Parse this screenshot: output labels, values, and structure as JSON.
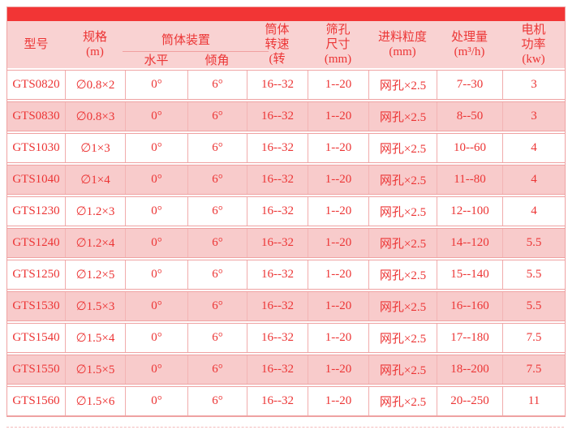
{
  "colors": {
    "top_bar_red": "#f23535",
    "header_background": "#f9d2d2",
    "row_pink": "#f8cbcb",
    "row_white": "#ffffff",
    "grid_line": "#efa2a2",
    "text_red": "#ec3535"
  },
  "table": {
    "headers": {
      "model": "型号",
      "spec": "规格\n(m)",
      "cylinder_group": "筒体装置",
      "horizontal": "水平",
      "incline": "倾角",
      "speed": "筒体\n转速\n(转",
      "hole_size": "筛孔\n尺寸\n(mm)",
      "feed_size": "进料粒度\n(mm)",
      "capacity": "处理量\n(m³/h)",
      "power": "电机\n功率\n(kw)"
    },
    "rows": [
      [
        "GTS0820",
        "∅0.8×2",
        "0°",
        "6°",
        "16--32",
        "1--20",
        "网孔×2.5",
        "7--30",
        "3"
      ],
      [
        "GTS0830",
        "∅0.8×3",
        "0°",
        "6°",
        "16--32",
        "1--20",
        "网孔×2.5",
        "8--50",
        "3"
      ],
      [
        "GTS1030",
        "∅1×3",
        "0°",
        "6°",
        "16--32",
        "1--20",
        "网孔×2.5",
        "10--60",
        "4"
      ],
      [
        "GTS1040",
        "∅1×4",
        "0°",
        "6°",
        "16--32",
        "1--20",
        "网孔×2.5",
        "11--80",
        "4"
      ],
      [
        "GTS1230",
        "∅1.2×3",
        "0°",
        "6°",
        "16--32",
        "1--20",
        "网孔×2.5",
        "12--100",
        "4"
      ],
      [
        "GTS1240",
        "∅1.2×4",
        "0°",
        "6°",
        "16--32",
        "1--20",
        "网孔×2.5",
        "14--120",
        "5.5"
      ],
      [
        "GTS1250",
        "∅1.2×5",
        "0°",
        "6°",
        "16--32",
        "1--20",
        "网孔×2.5",
        "15--140",
        "5.5"
      ],
      [
        "GTS1530",
        "∅1.5×3",
        "0°",
        "6°",
        "16--32",
        "1--20",
        "网孔×2.5",
        "16--160",
        "5.5"
      ],
      [
        "GTS1540",
        "∅1.5×4",
        "0°",
        "6°",
        "16--32",
        "1--20",
        "网孔×2.5",
        "17--180",
        "7.5"
      ],
      [
        "GTS1550",
        "∅1.5×5",
        "0°",
        "6°",
        "16--32",
        "1--20",
        "网孔×2.5",
        "18--200",
        "7.5"
      ],
      [
        "GTS1560",
        "∅1.5×6",
        "0°",
        "6°",
        "16--32",
        "1--20",
        "网孔×2.5",
        "20--250",
        "11"
      ]
    ]
  }
}
